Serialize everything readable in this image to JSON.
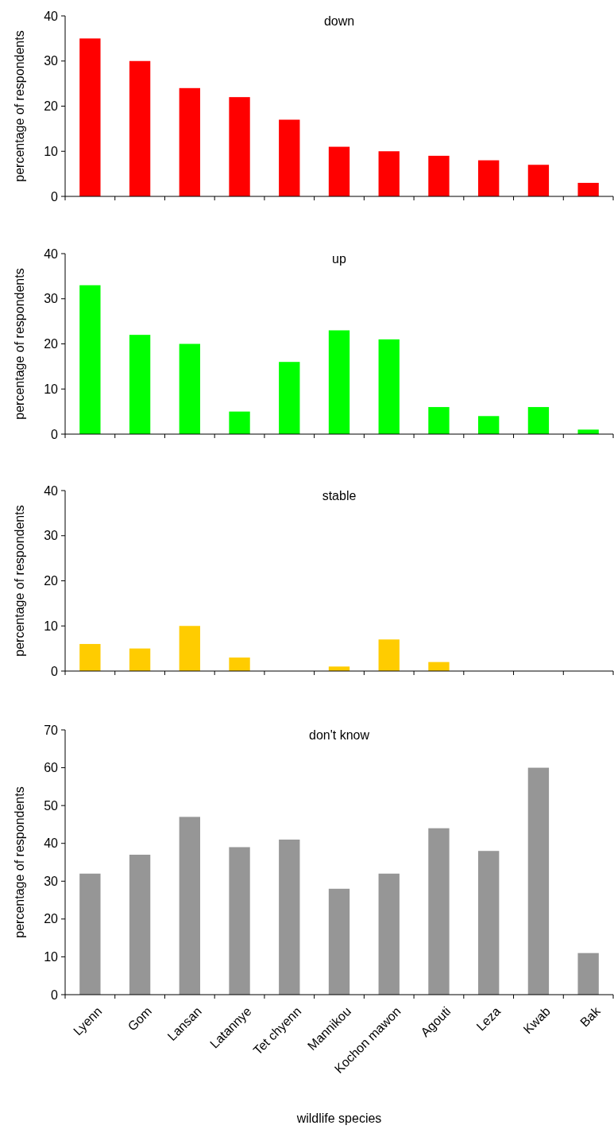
{
  "chart_data": [
    {
      "type": "bar",
      "title": "down",
      "ylabel": "percentage of respondents",
      "categories": [
        null,
        null,
        null,
        null,
        null,
        null,
        null,
        null,
        null,
        null,
        null
      ],
      "values": [
        35,
        30,
        24,
        22,
        17,
        11,
        10,
        9,
        8,
        7,
        3
      ],
      "color": "#ff0000",
      "ylim": [
        0,
        40
      ],
      "yticks": [
        0,
        10,
        20,
        30,
        40
      ],
      "tick_labels": "y"
    },
    {
      "type": "bar",
      "title": "up",
      "ylabel": "percentage of respondents",
      "categories": [
        null,
        null,
        null,
        null,
        null,
        null,
        null,
        null,
        null,
        null,
        null
      ],
      "values": [
        33,
        22,
        20,
        5,
        16,
        23,
        21,
        6,
        4,
        6,
        1
      ],
      "color": "#00ff00",
      "ylim": [
        0,
        40
      ],
      "yticks": [
        0,
        10,
        20,
        30,
        40
      ],
      "tick_labels": "y"
    },
    {
      "type": "bar",
      "title": "stable",
      "ylabel": "percentage of respondents",
      "categories": [
        null,
        null,
        null,
        null,
        null,
        null,
        null,
        null,
        null,
        null,
        null
      ],
      "values": [
        6,
        5,
        10,
        3,
        0,
        1,
        7,
        2,
        0,
        0,
        0
      ],
      "color": "#ffcc00",
      "ylim": [
        0,
        40
      ],
      "yticks": [
        0,
        10,
        20,
        30,
        40
      ],
      "tick_labels": "y"
    },
    {
      "type": "bar",
      "title": "don't know",
      "xlabel": "wildlife species",
      "ylabel": "percentage of respondents",
      "categories": [
        "Lyenn",
        "Gom",
        "Lansan",
        "Latannye",
        "Tet chyenn",
        "Mannikou",
        "Kochon mawon",
        "Agouti",
        "Leza",
        "Kwab",
        "Bak"
      ],
      "values": [
        32,
        37,
        47,
        39,
        41,
        28,
        32,
        44,
        38,
        60,
        11
      ],
      "color": "#969696",
      "ylim": [
        0,
        70
      ],
      "yticks": [
        0,
        10,
        20,
        30,
        40,
        50,
        60,
        70
      ]
    }
  ]
}
